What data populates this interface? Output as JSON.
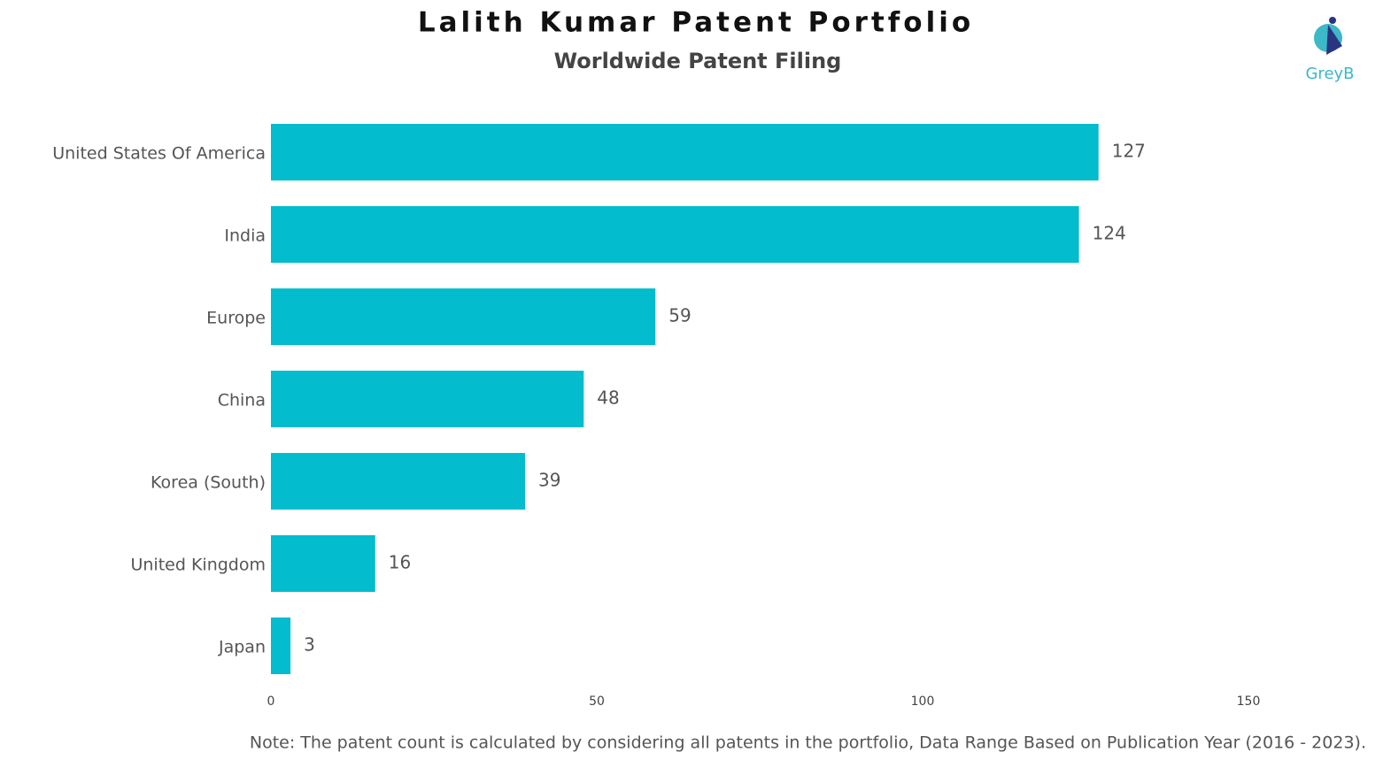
{
  "chart_data": {
    "type": "bar",
    "orientation": "horizontal",
    "title": "Lalith Kumar Patent Portfolio",
    "subtitle": "Worldwide Patent Filing",
    "categories": [
      "United States Of America",
      "India",
      "Europe",
      "China",
      "Korea (South)",
      "United Kingdom",
      "Japan"
    ],
    "values": [
      127,
      124,
      59,
      48,
      39,
      16,
      3
    ],
    "color": "#03bccd",
    "xlim": [
      0,
      150
    ],
    "xticks": [
      0,
      50,
      100,
      150
    ],
    "grid": false,
    "note": "Note: The patent count is calculated by considering all patents in the portfolio, Data Range Based on Publication Year (2016 - 2023).",
    "logo": "GreyB"
  }
}
